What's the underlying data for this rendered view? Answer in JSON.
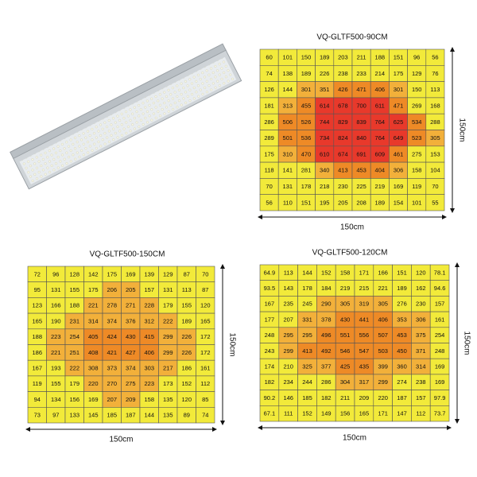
{
  "grids": [
    {
      "title": "VQ-GLTF500-90CM",
      "width_label": "150cm",
      "height_label": "150cm",
      "rows": [
        [
          60,
          101,
          150,
          189,
          203,
          211,
          188,
          151,
          96,
          56
        ],
        [
          74,
          138,
          189,
          226,
          238,
          233,
          214,
          175,
          129,
          76
        ],
        [
          126,
          144,
          301,
          351,
          426,
          471,
          406,
          301,
          150,
          113
        ],
        [
          181,
          313,
          455,
          614,
          678,
          700,
          611,
          471,
          269,
          168
        ],
        [
          286,
          506,
          526,
          744,
          829,
          839,
          764,
          625,
          534,
          288
        ],
        [
          289,
          501,
          536,
          734,
          824,
          840,
          764,
          649,
          523,
          305
        ],
        [
          175,
          310,
          470,
          610,
          674,
          691,
          609,
          461,
          275,
          153
        ],
        [
          118,
          141,
          281,
          340,
          413,
          453,
          404,
          306,
          158,
          104
        ],
        [
          70,
          131,
          178,
          218,
          230,
          225,
          219,
          169,
          119,
          70
        ],
        [
          56,
          110,
          151,
          195,
          205,
          208,
          189,
          154,
          101,
          55
        ]
      ]
    },
    {
      "title": "VQ-GLTF500-150CM",
      "width_label": "150cm",
      "height_label": "150cm",
      "rows": [
        [
          72,
          96,
          128,
          142,
          175,
          169,
          139,
          129,
          87,
          70
        ],
        [
          95,
          131,
          155,
          175,
          206,
          205,
          157,
          131,
          113,
          87
        ],
        [
          123,
          166,
          188,
          221,
          278,
          271,
          228,
          179,
          155,
          120
        ],
        [
          165,
          190,
          231,
          314,
          374,
          376,
          312,
          222,
          189,
          165
        ],
        [
          188,
          223,
          254,
          405,
          424,
          430,
          415,
          299,
          226,
          172
        ],
        [
          186,
          221,
          251,
          408,
          421,
          427,
          406,
          299,
          226,
          172
        ],
        [
          167,
          193,
          222,
          308,
          373,
          374,
          303,
          217,
          186,
          161
        ],
        [
          119,
          155,
          179,
          220,
          270,
          275,
          223,
          173,
          152,
          112
        ],
        [
          94,
          134,
          156,
          169,
          207,
          209,
          158,
          135,
          120,
          85
        ],
        [
          73,
          97,
          133,
          145,
          185,
          187,
          144,
          135,
          89,
          74
        ]
      ]
    },
    {
      "title": "VQ-GLTF500-120CM",
      "width_label": "150cm",
      "height_label": "150cm",
      "rows": [
        [
          64.9,
          113,
          144,
          152,
          158,
          171,
          166,
          151,
          120,
          78.1
        ],
        [
          93.5,
          143,
          178,
          184,
          219,
          215,
          221,
          189,
          162,
          94.6
        ],
        [
          167,
          235,
          245,
          290,
          305,
          319,
          305,
          276,
          230,
          157
        ],
        [
          177,
          207,
          331,
          378,
          430,
          441,
          406,
          353,
          306,
          161
        ],
        [
          248,
          295,
          295,
          496,
          551,
          556,
          507,
          453,
          375,
          254
        ],
        [
          243,
          299,
          413,
          492,
          546,
          547,
          503,
          450,
          371,
          248
        ],
        [
          174,
          210,
          325,
          377,
          425,
          435,
          399,
          360,
          314,
          169
        ],
        [
          182,
          234,
          244,
          286,
          304,
          317,
          299,
          274,
          238,
          169
        ],
        [
          90.2,
          146,
          185,
          182,
          211,
          209,
          220,
          187,
          157,
          97.9
        ],
        [
          67.1,
          111,
          152,
          149,
          156,
          165,
          171,
          147,
          112,
          73.7
        ]
      ]
    }
  ]
}
